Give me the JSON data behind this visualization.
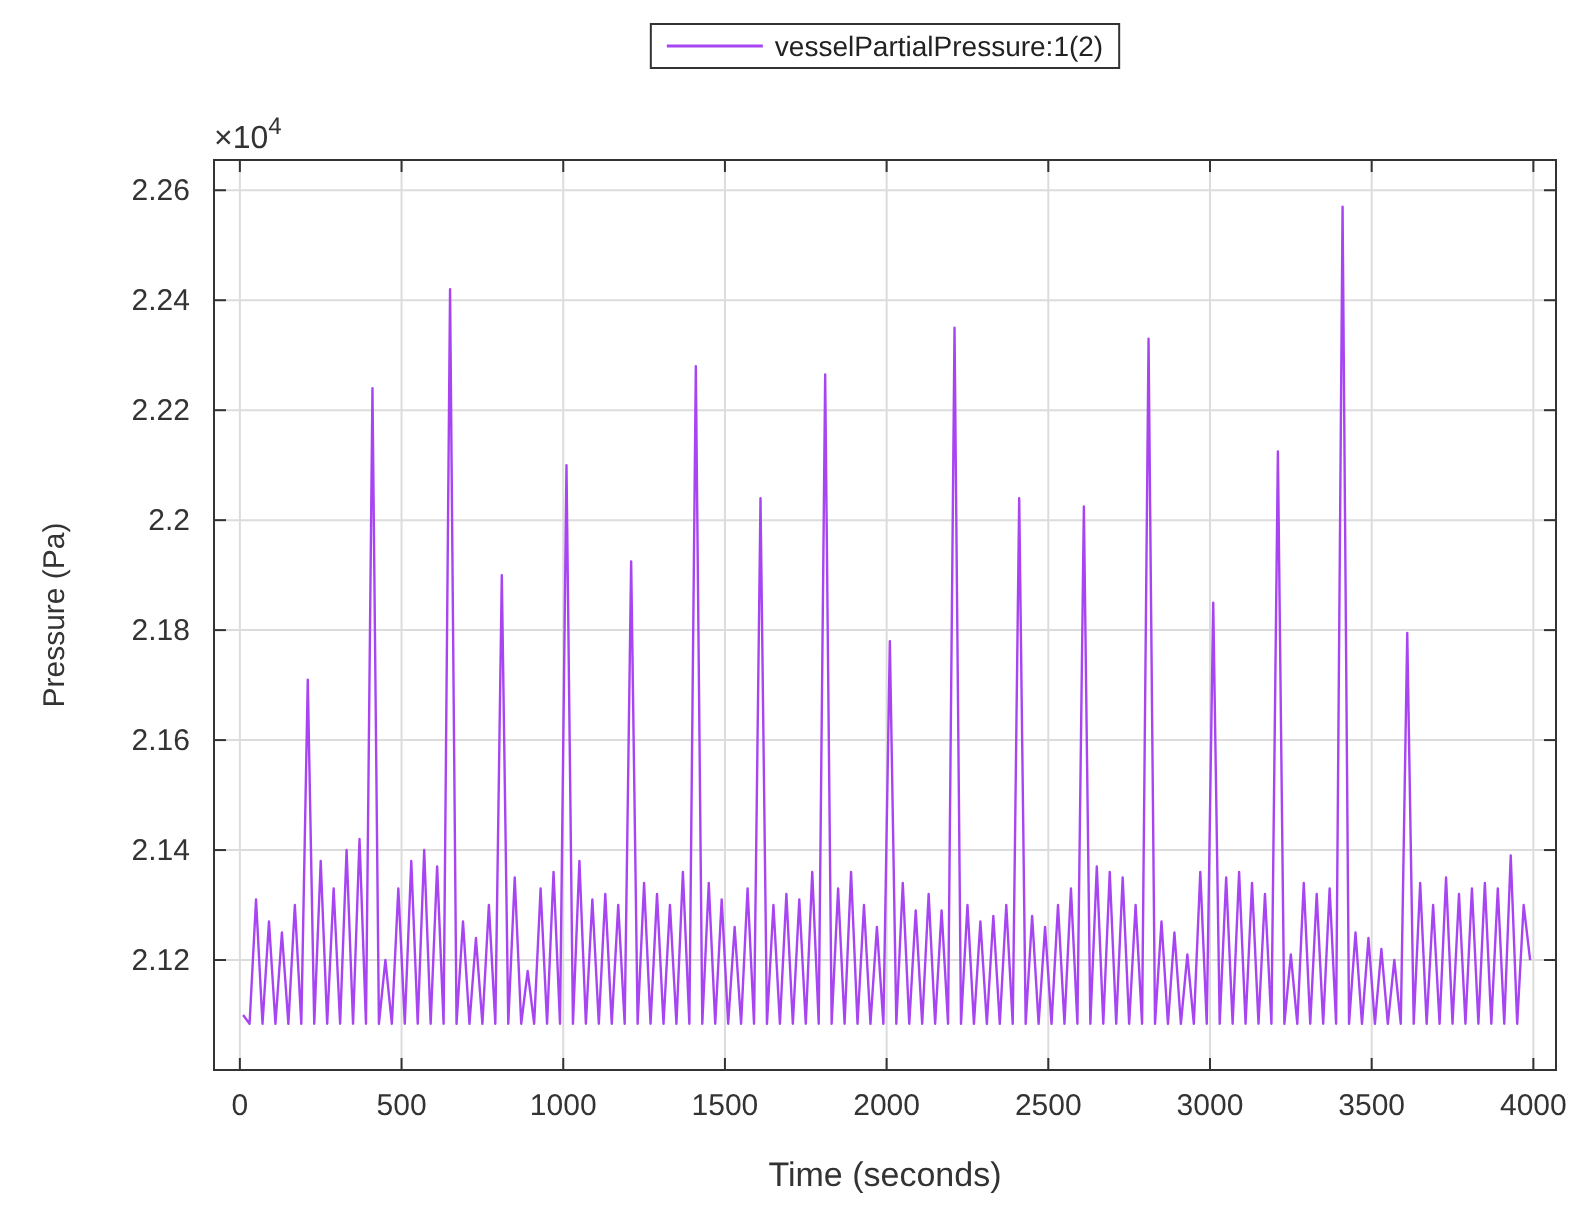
{
  "chart_data": {
    "type": "line",
    "xlabel": "Time (seconds)",
    "ylabel": "Pressure (Pa)",
    "annotations": [
      "×10$^{4}$"
    ],
    "x": [
      10,
      30,
      50,
      70,
      90,
      110,
      130,
      150,
      170,
      190,
      210,
      230,
      250,
      270,
      290,
      310,
      330,
      350,
      370,
      390,
      410,
      430,
      450,
      470,
      490,
      510,
      530,
      550,
      570,
      590,
      610,
      630,
      650,
      670,
      690,
      710,
      730,
      750,
      770,
      790,
      810,
      830,
      850,
      870,
      890,
      910,
      930,
      950,
      970,
      990,
      1010,
      1030,
      1050,
      1070,
      1090,
      1110,
      1130,
      1150,
      1170,
      1190,
      1210,
      1230,
      1250,
      1270,
      1290,
      1310,
      1330,
      1350,
      1370,
      1390,
      1410,
      1430,
      1450,
      1470,
      1490,
      1510,
      1530,
      1550,
      1570,
      1590,
      1610,
      1630,
      1650,
      1670,
      1690,
      1710,
      1730,
      1750,
      1770,
      1790,
      1810,
      1830,
      1850,
      1870,
      1890,
      1910,
      1930,
      1950,
      1970,
      1990,
      2010,
      2030,
      2050,
      2070,
      2090,
      2110,
      2130,
      2150,
      2170,
      2190,
      2210,
      2230,
      2250,
      2270,
      2290,
      2310,
      2330,
      2350,
      2370,
      2390,
      2410,
      2430,
      2450,
      2470,
      2490,
      2510,
      2530,
      2550,
      2570,
      2590,
      2610,
      2630,
      2650,
      2670,
      2690,
      2710,
      2730,
      2750,
      2770,
      2790,
      2810,
      2830,
      2850,
      2870,
      2890,
      2910,
      2930,
      2950,
      2970,
      2990,
      3010,
      3030,
      3050,
      3070,
      3090,
      3110,
      3130,
      3150,
      3170,
      3190,
      3210,
      3230,
      3250,
      3270,
      3290,
      3310,
      3330,
      3350,
      3370,
      3390,
      3410,
      3430,
      3450,
      3470,
      3490,
      3510,
      3530,
      3550,
      3570,
      3590,
      3610,
      3630,
      3650,
      3670,
      3690,
      3710,
      3730,
      3750,
      3770,
      3790,
      3810,
      3830,
      3850,
      3870,
      3890,
      3910,
      3930,
      3950,
      3970,
      3990
    ],
    "series": [
      {
        "name": "vesselPartialPressure:1(2)",
        "color": "#a845f2",
        "values": [
          2.11,
          2.1084,
          2.131,
          2.1084,
          2.127,
          2.1084,
          2.125,
          2.1084,
          2.13,
          2.1084,
          2.171,
          2.1084,
          2.138,
          2.1084,
          2.133,
          2.1084,
          2.14,
          2.1084,
          2.142,
          2.1084,
          2.224,
          2.1084,
          2.12,
          2.1084,
          2.133,
          2.1084,
          2.138,
          2.1084,
          2.14,
          2.1084,
          2.137,
          2.1084,
          2.242,
          2.1084,
          2.127,
          2.1084,
          2.124,
          2.1084,
          2.13,
          2.1084,
          2.19,
          2.1084,
          2.135,
          2.1084,
          2.118,
          2.1084,
          2.133,
          2.1084,
          2.136,
          2.1084,
          2.21,
          2.1084,
          2.138,
          2.1084,
          2.131,
          2.1084,
          2.132,
          2.1084,
          2.13,
          2.1084,
          2.1925,
          2.1084,
          2.134,
          2.1084,
          2.132,
          2.1084,
          2.13,
          2.1084,
          2.136,
          2.1084,
          2.228,
          2.1084,
          2.134,
          2.1084,
          2.131,
          2.1084,
          2.126,
          2.1084,
          2.133,
          2.1084,
          2.204,
          2.1084,
          2.13,
          2.1084,
          2.132,
          2.1084,
          2.131,
          2.1084,
          2.136,
          2.1084,
          2.2265,
          2.1084,
          2.133,
          2.1084,
          2.136,
          2.1084,
          2.13,
          2.1084,
          2.126,
          2.1084,
          2.178,
          2.1084,
          2.134,
          2.1084,
          2.129,
          2.1084,
          2.132,
          2.1084,
          2.129,
          2.1084,
          2.235,
          2.1084,
          2.13,
          2.1084,
          2.127,
          2.1084,
          2.128,
          2.1084,
          2.13,
          2.1084,
          2.204,
          2.1084,
          2.128,
          2.1084,
          2.126,
          2.1084,
          2.13,
          2.1084,
          2.133,
          2.1084,
          2.2025,
          2.1084,
          2.137,
          2.1084,
          2.136,
          2.1084,
          2.135,
          2.1084,
          2.13,
          2.1084,
          2.233,
          2.1084,
          2.127,
          2.1084,
          2.125,
          2.1084,
          2.121,
          2.1084,
          2.136,
          2.1084,
          2.185,
          2.1084,
          2.135,
          2.1084,
          2.136,
          2.1084,
          2.134,
          2.1084,
          2.132,
          2.1084,
          2.2125,
          2.1084,
          2.121,
          2.1084,
          2.134,
          2.1084,
          2.132,
          2.1084,
          2.133,
          2.1084,
          2.257,
          2.1084,
          2.125,
          2.1084,
          2.124,
          2.1084,
          2.122,
          2.1084,
          2.12,
          2.1084,
          2.1795,
          2.1084,
          2.134,
          2.1084,
          2.13,
          2.1084,
          2.135,
          2.1084,
          2.132,
          2.1084,
          2.133,
          2.1084,
          2.134,
          2.1084,
          2.133,
          2.1084,
          2.139,
          2.1084,
          2.13,
          2.12
        ]
      }
    ],
    "xlim": [
      -80,
      4070
    ],
    "xticks": [
      0,
      500,
      1000,
      1500,
      2000,
      2500,
      3000,
      3500,
      4000
    ],
    "ylim": [
      2.1,
      2.2655
    ],
    "yticks": [
      2.12,
      2.14,
      2.16,
      2.18,
      2.2,
      2.22,
      2.24,
      2.26
    ],
    "grid": true,
    "legend": "top",
    "line_style": "solid",
    "marker": "none"
  }
}
